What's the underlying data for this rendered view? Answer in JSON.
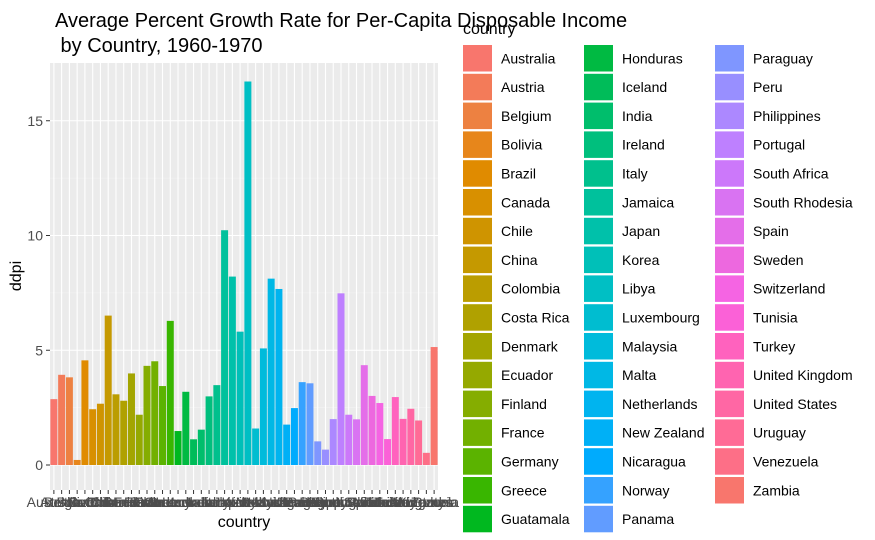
{
  "chart_data": {
    "type": "bar",
    "title_lines": [
      "Average Percent Growth Rate for Per-Capita Disposable Income",
      " by Country, 1960-1970"
    ],
    "xlabel": "country",
    "ylabel": "ddpi",
    "ylim": [
      0,
      17
    ],
    "yticks": [
      0,
      5,
      10,
      15
    ],
    "grid": true,
    "legend_title": "country",
    "legend_position": "right",
    "categories": [
      "Australia",
      "Austria",
      "Belgium",
      "Bolivia",
      "Brazil",
      "Canada",
      "Chile",
      "China",
      "Colombia",
      "Costa Rica",
      "Denmark",
      "Ecuador",
      "Finland",
      "France",
      "Germany",
      "Greece",
      "Guatamala",
      "Honduras",
      "Iceland",
      "India",
      "Ireland",
      "Italy",
      "Jamaica",
      "Japan",
      "Korea",
      "Libya",
      "Luxembourg",
      "Malaysia",
      "Malta",
      "Netherlands",
      "New Zealand",
      "Nicaragua",
      "Norway",
      "Panama",
      "Paraguay",
      "Peru",
      "Philippines",
      "Portugal",
      "South Africa",
      "South Rhodesia",
      "Spain",
      "Sweden",
      "Switzerland",
      "Tunisia",
      "Turkey",
      "United Kingdom",
      "United States",
      "Uruguay",
      "Venezuela",
      "Zambia"
    ],
    "values": [
      2.87,
      3.93,
      3.82,
      0.22,
      4.56,
      2.43,
      2.67,
      6.51,
      3.08,
      2.8,
      3.99,
      2.19,
      4.32,
      4.52,
      3.44,
      6.28,
      1.48,
      3.19,
      1.12,
      1.54,
      2.99,
      3.48,
      10.23,
      8.21,
      5.81,
      16.71,
      1.59,
      5.08,
      8.12,
      7.67,
      1.76,
      2.48,
      3.61,
      3.56,
      1.03,
      0.67,
      2.0,
      7.48,
      2.19,
      1.99,
      4.35,
      3.01,
      2.7,
      1.13,
      2.96,
      2.01,
      2.45,
      1.94,
      0.53,
      5.14
    ],
    "colors": [
      "#F8766D",
      "#F37B59",
      "#ED8141",
      "#E7861B",
      "#E08B00",
      "#D89000",
      "#CF9400",
      "#C59900",
      "#BB9D00",
      "#B0A100",
      "#A3A500",
      "#95A900",
      "#85AD00",
      "#72B000",
      "#5BB300",
      "#39B600",
      "#00B81F",
      "#00BA42",
      "#00BC59",
      "#00BE6C",
      "#00BF7D",
      "#00C08D",
      "#00C19C",
      "#00C1AA",
      "#00C0B8",
      "#00BFC4",
      "#00BDD0",
      "#00BBDB",
      "#00B8E5",
      "#00B4EF",
      "#00B0F6",
      "#00ABFD",
      "#35A2FF",
      "#619CFF",
      "#7F96FF",
      "#988FFF",
      "#AC88FF",
      "#BE80FF",
      "#CC78FA",
      "#D973F2",
      "#E46EE9",
      "#ED68DF",
      "#F564E3",
      "#FB61D7",
      "#FF62BE",
      "#FF64B0",
      "#FF67A4",
      "#FF6B96",
      "#FD6F87",
      "#F8766D"
    ]
  }
}
